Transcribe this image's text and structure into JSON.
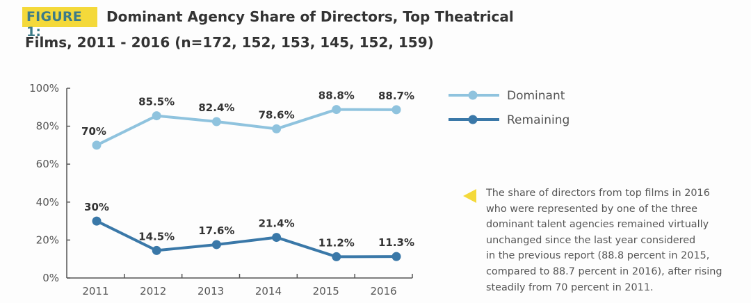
{
  "header": {
    "figure_label": "FIGURE 1:",
    "title_line1": "Dominant Agency Share of Directors, Top Theatrical",
    "title_line2": "Films, 2011 - 2016 (n=172, 152, 153, 145, 152, 159)",
    "badge_color": "#f4d93a"
  },
  "annotation": {
    "text": "The share of directors from top films in 2016 who were represented by one of the three dominant talent agencies remained virtually unchanged since the last year considered in the previous report (88.8 percent in 2015, compared to 88.7 percent in 2016), after rising steadily from 70 percent in 2011.",
    "lines": [
      "The share of directors from top films in 2016",
      "who were represented by one of the three",
      "dominant talent agencies remained virtually",
      "unchanged since the last year considered",
      "in the previous report (88.8 percent in 2015,",
      "compared to 88.7 percent in 2016), after rising",
      "steadily from 70 percent in 2011."
    ]
  },
  "chart_data": {
    "type": "line",
    "title": "Dominant Agency Share of Directors, Top Theatrical Films, 2011 - 2016 (n=172, 152, 153, 145, 152, 159)",
    "xlabel": "",
    "ylabel": "",
    "categories": [
      "2011",
      "2012",
      "2013",
      "2014",
      "2015",
      "2016"
    ],
    "ylim": [
      0,
      100
    ],
    "yticks": [
      0,
      20,
      40,
      60,
      80,
      100
    ],
    "ytick_labels": [
      "0%",
      "20%",
      "40%",
      "60%",
      "80%",
      "100%"
    ],
    "grid": false,
    "legend_position": "top-right",
    "series": [
      {
        "name": "Dominant",
        "color": "#8fc3de",
        "values": [
          70,
          85.5,
          82.4,
          78.6,
          88.8,
          88.7
        ],
        "labels": [
          "70%",
          "85.5%",
          "82.4%",
          "78.6%",
          "88.8%",
          "88.7%"
        ]
      },
      {
        "name": "Remaining",
        "color": "#3a78a8",
        "values": [
          30,
          14.5,
          17.6,
          21.4,
          11.2,
          11.3
        ],
        "labels": [
          "30%",
          "14.5%",
          "17.6%",
          "21.4%",
          "11.2%",
          "11.3%"
        ]
      }
    ]
  }
}
